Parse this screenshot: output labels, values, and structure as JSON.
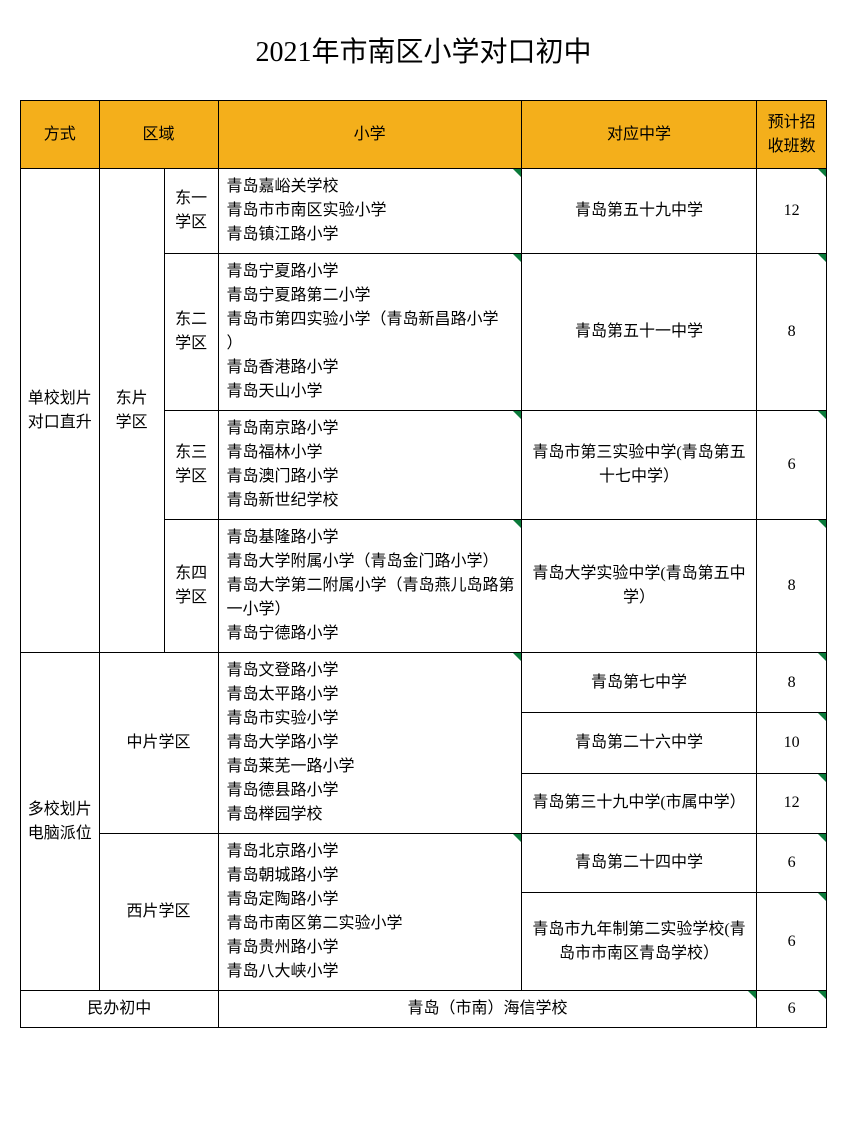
{
  "title": "2021年市南区小学对口初中",
  "headers": {
    "method": "方式",
    "region": "区域",
    "primary": "小学",
    "middle": "对应中学",
    "classes": "预计招\n收班数"
  },
  "method1": "单校划片\n对口直升",
  "method2": "多校划片\n电脑派位",
  "region_east": "东片\n学区",
  "region_mid": "中片学区",
  "region_west": "西片学区",
  "district_e1": "东一\n学区",
  "district_e2": "东二\n学区",
  "district_e3": "东三\n学区",
  "district_e4": "东四\n学区",
  "primary_e1": "青岛嘉峪关学校\n青岛市市南区实验小学\n青岛镇江路小学",
  "primary_e2": "青岛宁夏路小学\n青岛宁夏路第二小学\n青岛市第四实验小学（青岛新昌路小学 ）\n青岛香港路小学\n青岛天山小学",
  "primary_e3": "青岛南京路小学\n青岛福林小学\n青岛澳门路小学\n青岛新世纪学校",
  "primary_e4": "青岛基隆路小学\n青岛大学附属小学（青岛金门路小学）\n青岛大学第二附属小学（青岛燕儿岛路第一小学）\n青岛宁德路小学",
  "primary_mid": "青岛文登路小学\n青岛太平路小学\n青岛市实验小学\n青岛大学路小学\n青岛莱芜一路小学\n青岛德县路小学\n青岛榉园学校",
  "primary_west": "青岛北京路小学\n青岛朝城路小学\n青岛定陶路小学\n青岛市南区第二实验小学\n青岛贵州路小学\n青岛八大峡小学",
  "middle_e1": "青岛第五十九中学",
  "middle_e2": "青岛第五十一中学",
  "middle_e3": "青岛市第三实验中学(青岛第五十七中学）",
  "middle_e4": "青岛大学实验中学(青岛第五中学）",
  "middle_m1": "青岛第七中学",
  "middle_m2": "青岛第二十六中学",
  "middle_m3": "青岛第三十九中学(市属中学）",
  "middle_w1": "青岛第二十四中学",
  "middle_w2": "青岛市九年制第二实验学校(青岛市市南区青岛学校）",
  "classes_e1": "12",
  "classes_e2": "8",
  "classes_e3": "6",
  "classes_e4": "8",
  "classes_m1": "8",
  "classes_m2": "10",
  "classes_m3": "12",
  "classes_w1": "6",
  "classes_w2": "6",
  "private_label": "民办初中",
  "private_school": "青岛（市南）海信学校",
  "private_classes": "6"
}
